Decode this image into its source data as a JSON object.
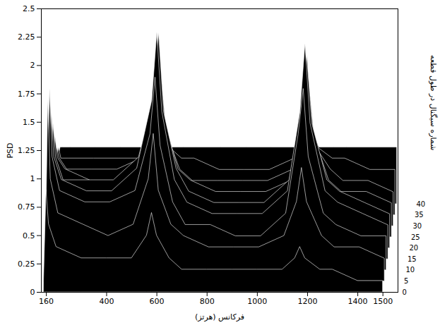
{
  "chart_data": {
    "type": "waterfall",
    "xlabel": "فرکانس (هرتز)",
    "ylabel": "PSD",
    "zlabel": "شماره سیگنال در طول قطعه",
    "color": "#000000",
    "xlim": [
      140,
      1560
    ],
    "xticks": [
      160,
      400,
      600,
      800,
      1000,
      1200,
      1400,
      1500
    ],
    "ylim": [
      0,
      2.5
    ],
    "yticks": [
      0,
      0.25,
      0.5,
      0.75,
      1,
      1.25,
      1.5,
      1.75,
      2,
      2.25,
      2.5
    ],
    "zlim": [
      0,
      40
    ],
    "zticks": [
      0,
      5,
      10,
      15,
      20,
      25,
      30,
      35,
      40
    ],
    "grid": false,
    "x": [
      150,
      160,
      170,
      200,
      300,
      400,
      500,
      560,
      580,
      600,
      650,
      700,
      800,
      900,
      1000,
      1100,
      1150,
      1170,
      1190,
      1250,
      1300,
      1400,
      1500
    ],
    "series": [
      {
        "signal": 0,
        "values": [
          0.1,
          0.9,
          0.6,
          0.4,
          0.3,
          0.3,
          0.3,
          0.5,
          0.7,
          0.5,
          0.3,
          0.2,
          0.2,
          0.2,
          0.2,
          0.2,
          0.3,
          0.4,
          0.3,
          0.2,
          0.2,
          0.1,
          0.1
        ]
      },
      {
        "signal": 5,
        "values": [
          0.2,
          1.6,
          0.9,
          0.6,
          0.5,
          0.4,
          0.5,
          0.9,
          1.3,
          0.8,
          0.5,
          0.4,
          0.3,
          0.3,
          0.3,
          0.4,
          0.7,
          1.0,
          0.7,
          0.4,
          0.3,
          0.3,
          0.2
        ]
      },
      {
        "signal": 10,
        "values": [
          0.3,
          1.6,
          1.0,
          0.7,
          0.6,
          0.6,
          0.7,
          1.2,
          1.7,
          1.1,
          0.6,
          0.4,
          0.4,
          0.3,
          0.3,
          0.5,
          1.2,
          1.6,
          1.0,
          0.5,
          0.4,
          0.3,
          0.3
        ]
      },
      {
        "signal": 15,
        "values": [
          0.3,
          1.3,
          0.9,
          0.7,
          0.6,
          0.6,
          0.8,
          1.4,
          2.0,
          1.3,
          0.7,
          0.5,
          0.4,
          0.4,
          0.4,
          0.6,
          1.3,
          1.9,
          1.2,
          0.6,
          0.5,
          0.4,
          0.3
        ]
      },
      {
        "signal": 20,
        "values": [
          0.3,
          1.1,
          0.8,
          0.6,
          0.6,
          0.6,
          0.8,
          1.3,
          1.9,
          1.2,
          0.7,
          0.5,
          0.4,
          0.4,
          0.4,
          0.6,
          1.2,
          1.7,
          1.1,
          0.6,
          0.5,
          0.4,
          0.3
        ]
      },
      {
        "signal": 25,
        "values": [
          0.3,
          0.9,
          0.7,
          0.6,
          0.5,
          0.5,
          0.7,
          1.1,
          1.5,
          1.0,
          0.6,
          0.5,
          0.4,
          0.4,
          0.4,
          0.5,
          1.0,
          1.4,
          0.9,
          0.5,
          0.4,
          0.4,
          0.3
        ]
      },
      {
        "signal": 30,
        "values": [
          0.3,
          0.7,
          0.6,
          0.5,
          0.5,
          0.5,
          0.6,
          0.8,
          1.1,
          0.8,
          0.5,
          0.4,
          0.4,
          0.4,
          0.4,
          0.5,
          0.8,
          1.1,
          0.7,
          0.5,
          0.4,
          0.4,
          0.3
        ]
      },
      {
        "signal": 35,
        "values": [
          0.4,
          0.6,
          0.5,
          0.5,
          0.5,
          0.5,
          0.5,
          0.6,
          0.8,
          0.6,
          0.5,
          0.5,
          0.4,
          0.4,
          0.4,
          0.5,
          0.6,
          0.8,
          0.6,
          0.5,
          0.5,
          0.4,
          0.4
        ]
      },
      {
        "signal": 40,
        "values": [
          0.4,
          0.5,
          0.5,
          0.5,
          0.5,
          0.5,
          0.5,
          0.5,
          0.6,
          0.5,
          0.5,
          0.5,
          0.5,
          0.5,
          0.5,
          0.5,
          0.5,
          0.6,
          0.5,
          0.5,
          0.5,
          0.5,
          0.5
        ]
      }
    ]
  }
}
